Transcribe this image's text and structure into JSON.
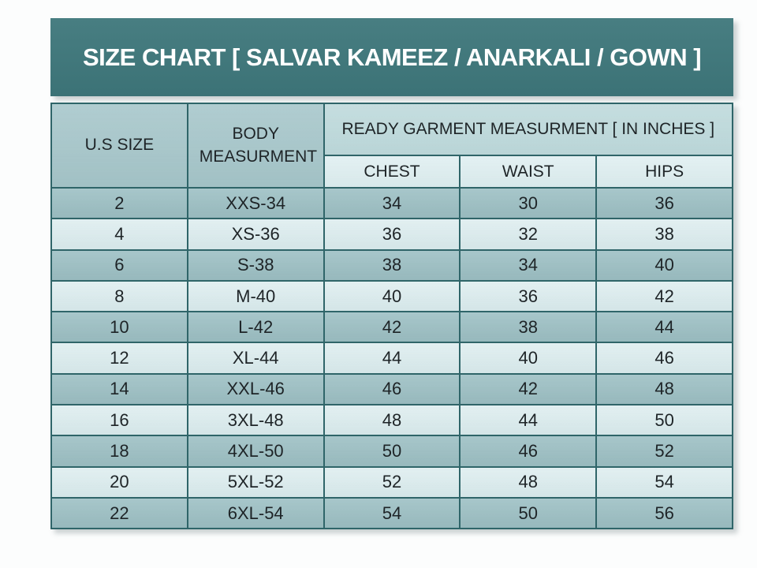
{
  "title": "SIZE CHART [ SALVAR KAMEEZ / ANARKALI / GOWN ]",
  "colors": {
    "page_bg": "#fcfdfd",
    "title_bg": "#3e777b",
    "title_text": "#ffffff",
    "header_cell_bg": "#a7c7cb",
    "garment_band_bg": "#bdd9db",
    "subheader_bg": "#dcedef",
    "row_dark_bg": "#9dc0c4",
    "row_light_bg": "#d8eaec",
    "border": "#2f6569",
    "text": "#1e2427"
  },
  "table": {
    "headers": {
      "us_size": "U.S SIZE",
      "body_measurement": "BODY MEASURMENT",
      "ready_garment": "READY GARMENT MEASURMENT [ IN INCHES ]",
      "chest": "CHEST",
      "waist": "WAIST",
      "hips": "HIPS"
    },
    "rows": [
      [
        "2",
        "XXS-34",
        "34",
        "30",
        "36"
      ],
      [
        "4",
        "XS-36",
        "36",
        "32",
        "38"
      ],
      [
        "6",
        "S-38",
        "38",
        "34",
        "40"
      ],
      [
        "8",
        "M-40",
        "40",
        "36",
        "42"
      ],
      [
        "10",
        "L-42",
        "42",
        "38",
        "44"
      ],
      [
        "12",
        "XL-44",
        "44",
        "40",
        "46"
      ],
      [
        "14",
        "XXL-46",
        "46",
        "42",
        "48"
      ],
      [
        "16",
        "3XL-48",
        "48",
        "44",
        "50"
      ],
      [
        "18",
        "4XL-50",
        "50",
        "46",
        "52"
      ],
      [
        "20",
        "5XL-52",
        "52",
        "48",
        "54"
      ],
      [
        "22",
        "6XL-54",
        "54",
        "50",
        "56"
      ]
    ]
  },
  "chart_data": {
    "type": "table",
    "title": "SIZE CHART [ SALVAR KAMEEZ / ANARKALI / GOWN ]",
    "columns": [
      "U.S SIZE",
      "BODY MEASURMENT",
      "CHEST",
      "WAIST",
      "HIPS"
    ],
    "column_group": "READY GARMENT MEASURMENT [ IN INCHES ]",
    "rows": [
      [
        "2",
        "XXS-34",
        34,
        30,
        36
      ],
      [
        "4",
        "XS-36",
        36,
        32,
        38
      ],
      [
        "6",
        "S-38",
        38,
        34,
        40
      ],
      [
        "8",
        "M-40",
        40,
        36,
        42
      ],
      [
        "10",
        "L-42",
        42,
        38,
        44
      ],
      [
        "12",
        "XL-44",
        44,
        40,
        46
      ],
      [
        "14",
        "XXL-46",
        46,
        42,
        48
      ],
      [
        "16",
        "3XL-48",
        48,
        44,
        50
      ],
      [
        "18",
        "4XL-50",
        50,
        46,
        52
      ],
      [
        "20",
        "5XL-52",
        52,
        48,
        54
      ],
      [
        "22",
        "6XL-54",
        54,
        50,
        56
      ]
    ]
  }
}
